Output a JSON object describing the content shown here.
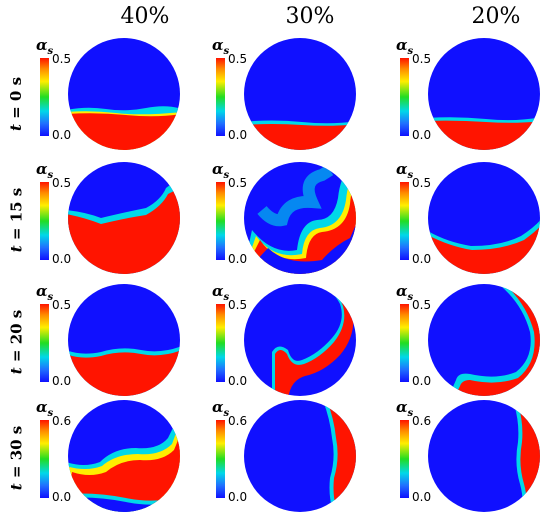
{
  "columns": [
    "40%",
    "30%",
    "20%"
  ],
  "rows": [
    {
      "label_var": "t",
      "label_rest": " = 0 s",
      "cb_max": "0.5",
      "cb_min": "0.0"
    },
    {
      "label_var": "t",
      "label_rest": " = 15 s",
      "cb_max": "0.5",
      "cb_min": "0.0"
    },
    {
      "label_var": "t",
      "label_rest": " = 20 s",
      "cb_max": "0.5",
      "cb_min": "0.0"
    },
    {
      "label_var": "t",
      "label_rest": " = 30 s",
      "cb_max": "0.6",
      "cb_min": "0.0"
    }
  ],
  "colorbar": {
    "symbol": "α",
    "subscript": "s"
  },
  "colors": {
    "low": "#1010ff",
    "high": "#ff1400",
    "interface_mid": "#22dd22",
    "interface_cyan": "#00d8e8",
    "interface_yellow": "#ffee00"
  }
}
